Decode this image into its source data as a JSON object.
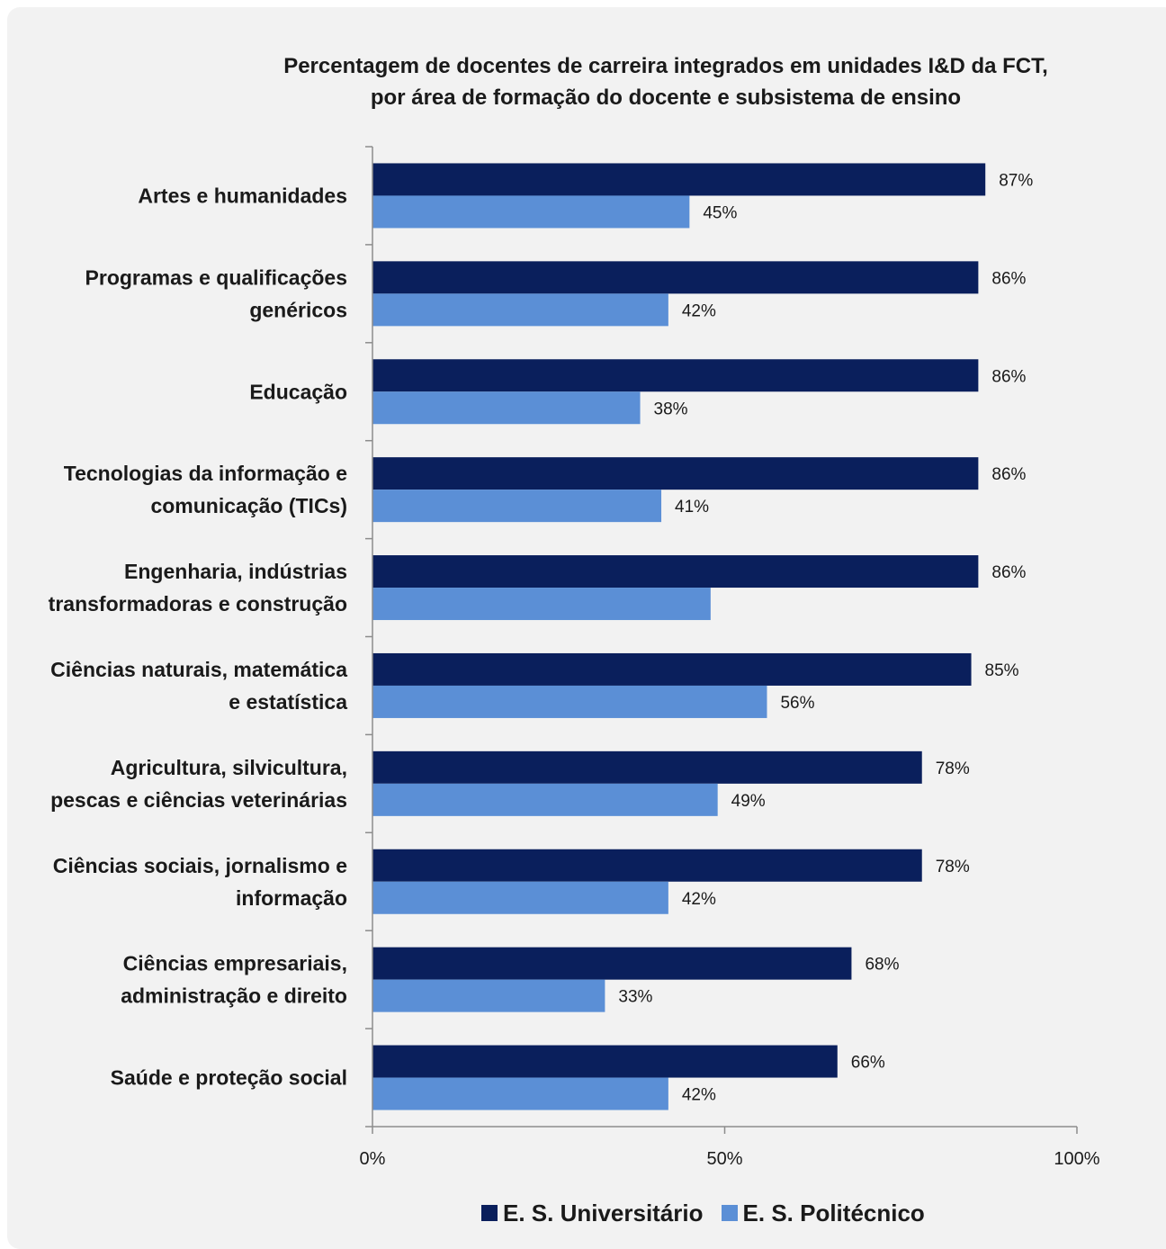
{
  "chart_data": {
    "type": "bar",
    "orientation": "horizontal",
    "title_lines": [
      "Percentagem de docentes de carreira integrados em unidades I&D da FCT,",
      "por área de formação do docente e subsistema de ensino"
    ],
    "categories": [
      [
        "Artes e humanidades"
      ],
      [
        "Programas e qualificações",
        "genéricos"
      ],
      [
        "Educação"
      ],
      [
        "Tecnologias da informação e",
        "comunicação (TICs)"
      ],
      [
        "Engenharia, indústrias",
        "transformadoras e construção"
      ],
      [
        "Ciências naturais, matemática",
        "e estatística"
      ],
      [
        "Agricultura, silvicultura,",
        "pescas e ciências veterinárias"
      ],
      [
        "Ciências sociais, jornalismo e",
        "informação"
      ],
      [
        "Ciências empresariais,",
        "administração e direito"
      ],
      [
        "Saúde e proteção social"
      ]
    ],
    "series": [
      {
        "name": "E. S. Universitário",
        "color": "#0a1f5c",
        "values": [
          87,
          86,
          86,
          86,
          86,
          85,
          78,
          78,
          68,
          66
        ],
        "labels": [
          "87%",
          "86%",
          "86%",
          "86%",
          "86%",
          "85%",
          "78%",
          "78%",
          "68%",
          "66%"
        ]
      },
      {
        "name": "E. S. Politécnico",
        "color": "#5b8fd6",
        "values": [
          45,
          42,
          38,
          41,
          48,
          56,
          49,
          42,
          33,
          42
        ],
        "labels": [
          "45%",
          "42%",
          "38%",
          "41%",
          "",
          "56%",
          "49%",
          "42%",
          "33%",
          "42%"
        ]
      }
    ],
    "xlim": [
      0,
      100
    ],
    "xticks": [
      0,
      50,
      100
    ],
    "xtick_labels": [
      "0%",
      "50%",
      "100%"
    ],
    "grid": false,
    "legend_position": "bottom"
  }
}
